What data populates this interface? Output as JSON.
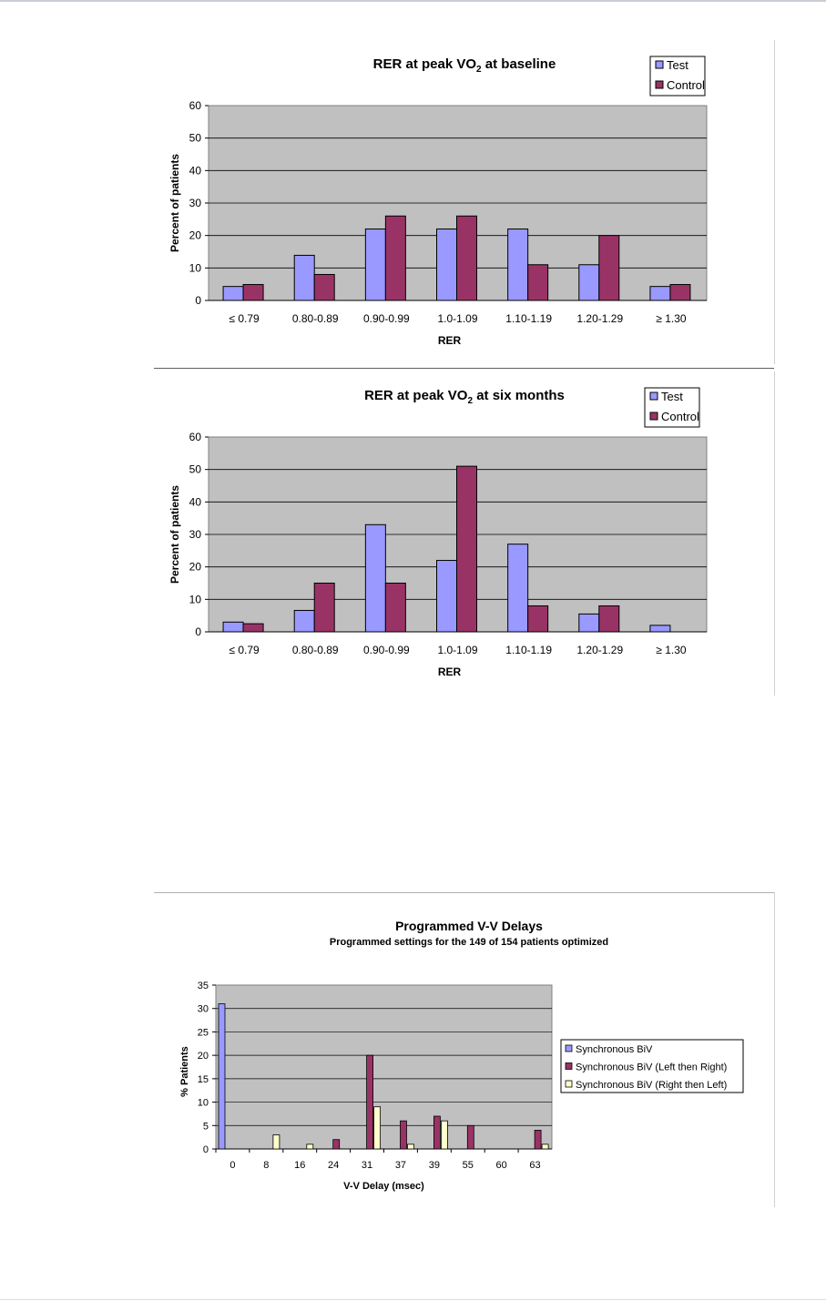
{
  "colors": {
    "plot_bg": "#c0c0c0",
    "test": "#9999ff",
    "control": "#993366",
    "right_then_left": "#ffffcc",
    "grid": "#000000"
  },
  "chart_data": [
    {
      "type": "bar",
      "title": "RER at peak VO",
      "title_sub": "2",
      "title_suffix": " at baseline",
      "xlabel": "RER",
      "ylabel": "Percent of patients",
      "ylim": [
        0,
        60
      ],
      "yticks": [
        "0",
        "10",
        "20",
        "30",
        "40",
        "50",
        "60"
      ],
      "categories": [
        "≤ 0.79",
        "0.80-0.89",
        "0.90-0.99",
        "1.0-1.09",
        "1.10-1.19",
        "1.20-1.29",
        "≥ 1.30"
      ],
      "series": [
        {
          "name": "Test",
          "values": [
            4.3,
            13.9,
            22,
            22,
            22,
            11,
            4.3
          ]
        },
        {
          "name": "Control",
          "values": [
            4.9,
            8,
            26,
            26,
            11,
            20,
            4.9
          ]
        }
      ],
      "legend": "top-right",
      "grid": true
    },
    {
      "type": "bar",
      "title": "RER at peak VO",
      "title_sub": "2",
      "title_suffix": " at six months",
      "xlabel": "RER",
      "ylabel": "Percent of patients",
      "ylim": [
        0,
        60
      ],
      "yticks": [
        "0",
        "10",
        "20",
        "30",
        "40",
        "50",
        "60"
      ],
      "categories": [
        "≤ 0.79",
        "0.80-0.89",
        "0.90-0.99",
        "1.0-1.09",
        "1.10-1.19",
        "1.20-1.29",
        "≥ 1.30"
      ],
      "series": [
        {
          "name": "Test",
          "values": [
            3,
            6.6,
            33,
            22,
            27,
            5.5,
            2
          ]
        },
        {
          "name": "Control",
          "values": [
            2.5,
            15,
            15,
            51,
            8,
            8,
            0
          ]
        }
      ],
      "legend": "top-right",
      "grid": true
    },
    {
      "type": "bar",
      "title": "Programmed V-V Delays",
      "subtitle": "Programmed settings for the 149 of 154 patients optimized",
      "xlabel": "V-V Delay (msec)",
      "ylabel": "% Patients",
      "ylim": [
        0,
        35
      ],
      "yticks": [
        "0",
        "5",
        "10",
        "15",
        "20",
        "25",
        "30",
        "35"
      ],
      "categories": [
        "0",
        "8",
        "16",
        "24",
        "31",
        "37",
        "39",
        "55",
        "60",
        "63"
      ],
      "series": [
        {
          "name": "Synchronous BiV",
          "values": [
            31,
            0,
            0,
            0,
            0,
            0,
            0,
            0,
            0,
            0
          ]
        },
        {
          "name": "Synchronous BiV (Left then Right)",
          "values": [
            0,
            0,
            0,
            2,
            20,
            6,
            7,
            5,
            0,
            4
          ]
        },
        {
          "name": "Synchronous BiV (Right then Left)",
          "values": [
            0,
            3,
            1,
            0,
            9,
            1,
            6,
            0,
            0,
            1
          ]
        }
      ],
      "legend": "right",
      "grid": true
    }
  ]
}
